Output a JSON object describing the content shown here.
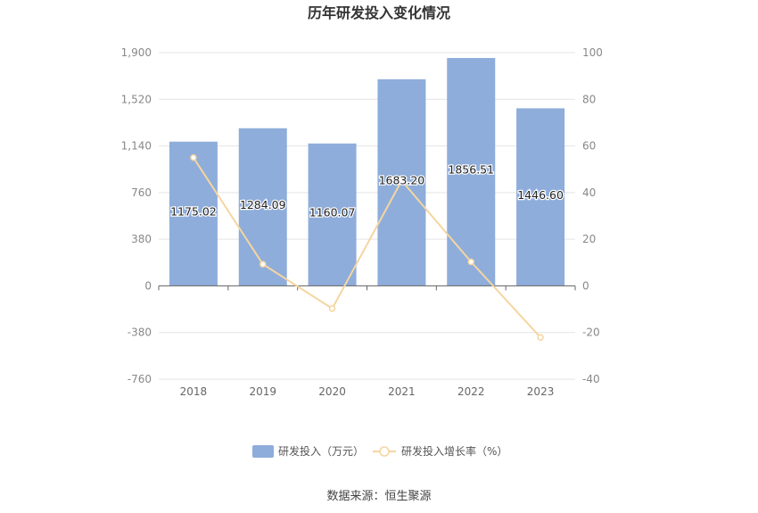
{
  "chart_data": {
    "type": "bar",
    "title": "历年研发投入变化情况",
    "categories": [
      "2018",
      "2019",
      "2020",
      "2021",
      "2022",
      "2023"
    ],
    "series": [
      {
        "name": "研发投入（万元）",
        "type": "bar",
        "axis": "left",
        "values": [
          1175.02,
          1284.09,
          1160.07,
          1683.2,
          1856.51,
          1446.6
        ],
        "labels": [
          "1175.02",
          "1284.09",
          "1160.07",
          "1683.20",
          "1856.51",
          "1446.60"
        ],
        "color": "#8eaddb"
      },
      {
        "name": "研发投入增长率（%）",
        "type": "line",
        "axis": "right",
        "values": [
          55.0,
          9.3,
          -9.7,
          45.1,
          10.3,
          -22.1
        ],
        "color": "#f5d5a0"
      }
    ],
    "y_left": {
      "min": -760,
      "max": 1900,
      "ticks": [
        "-760",
        "-380",
        "0",
        "380",
        "760",
        "1,140",
        "1,520",
        "1,900"
      ]
    },
    "y_right": {
      "min": -40,
      "max": 100,
      "ticks": [
        "-40",
        "-20",
        "0",
        "20",
        "40",
        "60",
        "80",
        "100"
      ]
    },
    "grid": true,
    "legend_position": "bottom"
  },
  "source_text": "数据来源：恒生聚源"
}
